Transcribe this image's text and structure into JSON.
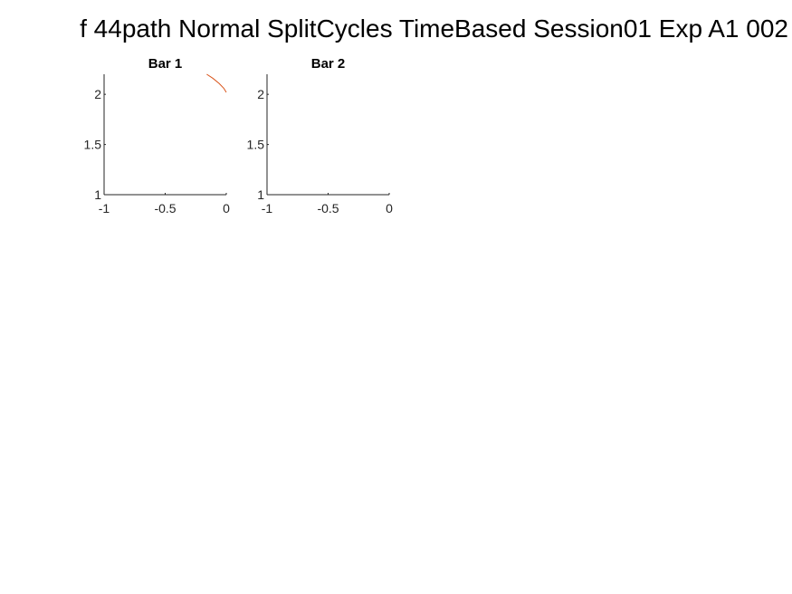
{
  "figure": {
    "title": "f 44path Normal SplitCycles TimeBased Session01 Exp A1 002"
  },
  "colors": {
    "axis": "#262626",
    "series": "#d95319"
  },
  "chart_data": [
    {
      "type": "line",
      "title": "Bar 1",
      "xlabel": "",
      "ylabel": "",
      "xlim": [
        -1,
        0
      ],
      "ylim": [
        1,
        2.2
      ],
      "xticks": [
        -1,
        -0.5,
        0
      ],
      "xtick_labels": [
        "-1",
        "-0.5",
        "0"
      ],
      "yticks": [
        1,
        1.5,
        2
      ],
      "ytick_labels": [
        "1",
        "1.5",
        "2"
      ],
      "grid": false,
      "series": [
        {
          "x": [
            -0.16,
            -0.11,
            -0.06,
            -0.02,
            0
          ],
          "y": [
            2.2,
            2.16,
            2.11,
            2.06,
            2.02
          ]
        }
      ]
    },
    {
      "type": "line",
      "title": "Bar 2",
      "xlabel": "",
      "ylabel": "",
      "xlim": [
        -1,
        0
      ],
      "ylim": [
        1,
        2.2
      ],
      "xticks": [
        -1,
        -0.5,
        0
      ],
      "xtick_labels": [
        "-1",
        "-0.5",
        "0"
      ],
      "yticks": [
        1,
        1.5,
        2
      ],
      "ytick_labels": [
        "1",
        "1.5",
        "2"
      ],
      "grid": false,
      "series": []
    }
  ]
}
